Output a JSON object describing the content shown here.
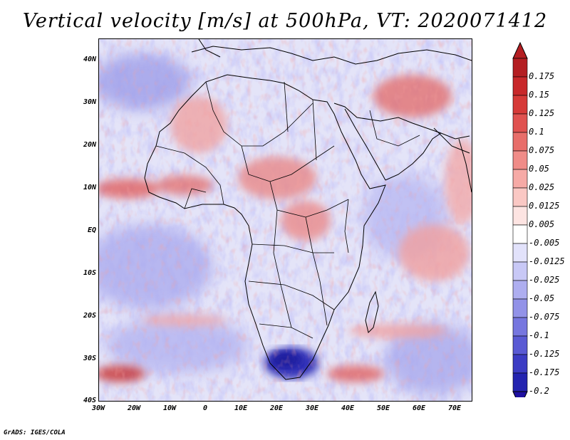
{
  "title": "Vertical velocity [m/s] at 500hPa, VT: 2020071412",
  "credit": "GrADS: IGES/COLA",
  "map": {
    "projection": "latlon",
    "lon_range": [
      -30,
      75
    ],
    "lat_range": [
      -40,
      45
    ],
    "variable": "vertical velocity",
    "units": "m/s",
    "level": "500hPa",
    "valid_time": "2020071412",
    "lat_ticks": [
      {
        "value": 40,
        "label": "40N"
      },
      {
        "value": 30,
        "label": "30N"
      },
      {
        "value": 20,
        "label": "20N"
      },
      {
        "value": 10,
        "label": "10N"
      },
      {
        "value": 0,
        "label": "EQ"
      },
      {
        "value": -10,
        "label": "10S"
      },
      {
        "value": -20,
        "label": "20S"
      },
      {
        "value": -30,
        "label": "30S"
      },
      {
        "value": -40,
        "label": "40S"
      }
    ],
    "lon_ticks": [
      {
        "value": -30,
        "label": "30W"
      },
      {
        "value": -20,
        "label": "20W"
      },
      {
        "value": -10,
        "label": "10W"
      },
      {
        "value": 0,
        "label": "0"
      },
      {
        "value": 10,
        "label": "10E"
      },
      {
        "value": 20,
        "label": "20E"
      },
      {
        "value": 30,
        "label": "30E"
      },
      {
        "value": 40,
        "label": "40E"
      },
      {
        "value": 50,
        "label": "50E"
      },
      {
        "value": 60,
        "label": "60E"
      },
      {
        "value": 70,
        "label": "70E"
      }
    ]
  },
  "colorbar": {
    "levels": [
      {
        "label": "0.175",
        "color": "#b41e22"
      },
      {
        "label": "0.15",
        "color": "#c8282a"
      },
      {
        "label": "0.125",
        "color": "#d63a38"
      },
      {
        "label": "0.1",
        "color": "#e05250"
      },
      {
        "label": "0.075",
        "color": "#e86e6a"
      },
      {
        "label": "0.05",
        "color": "#f08c88"
      },
      {
        "label": "0.025",
        "color": "#f6aaa6"
      },
      {
        "label": "0.0125",
        "color": "#fac8c4"
      },
      {
        "label": "0.005",
        "color": "#fde4e2"
      },
      {
        "label": "-0.005",
        "color": "#ffffff"
      },
      {
        "label": "-0.0125",
        "color": "#e2e2fb"
      },
      {
        "label": "-0.025",
        "color": "#c8c8f6"
      },
      {
        "label": "-0.05",
        "color": "#aeaef0"
      },
      {
        "label": "-0.075",
        "color": "#9292e8"
      },
      {
        "label": "-0.1",
        "color": "#7676df"
      },
      {
        "label": "-0.125",
        "color": "#5a5ad4"
      },
      {
        "label": "-0.175",
        "color": "#3c3cc4"
      },
      {
        "label": "-0.2",
        "color": "#2424b0"
      }
    ],
    "extend_top_color": "#b41e22",
    "extend_bottom_color": "#1e10a0"
  }
}
